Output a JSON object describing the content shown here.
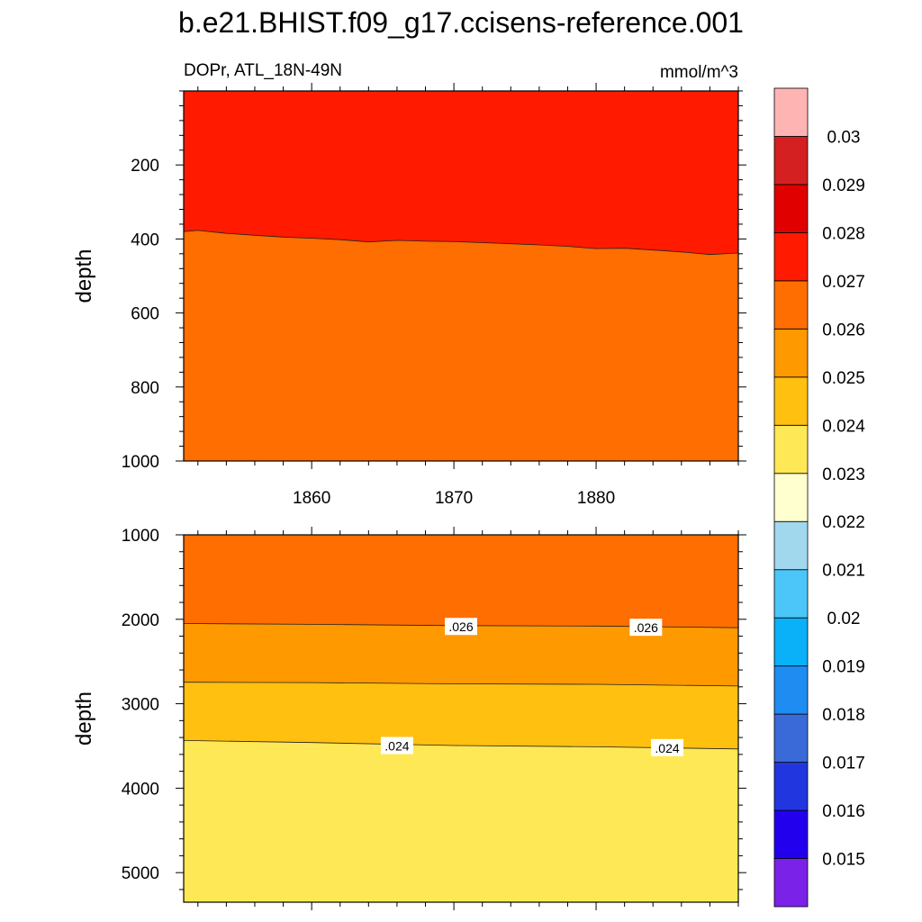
{
  "title": "b.e21.BHIST.f09_g17.ccisens-reference.001",
  "subtitle_left": "DOPr, ATL_18N-49N",
  "subtitle_right": "mmol/m^3",
  "chart_data": [
    {
      "type": "area",
      "panel": "top",
      "ylabel": "depth",
      "xlim": [
        1851,
        1890
      ],
      "ylim": [
        0,
        1000
      ],
      "y_inverted": true,
      "x_ticks": [
        1860,
        1870,
        1880
      ],
      "x_tick_labels": [
        "1860",
        "1870",
        "1880"
      ],
      "y_ticks": [
        200,
        400,
        600,
        800,
        1000
      ],
      "y_tick_labels": [
        "200",
        "400",
        "600",
        "800",
        "1000"
      ],
      "bands": [
        {
          "level_range": [
            0.027,
            0.028
          ],
          "color": "#ff1a00"
        },
        {
          "level_range": [
            0.026,
            0.027
          ],
          "color": "#ff6e00"
        }
      ],
      "contours": [
        {
          "level": 0.027,
          "x": [
            1851,
            1852,
            1854,
            1856,
            1858,
            1860,
            1862,
            1864,
            1866,
            1868,
            1870,
            1872,
            1874,
            1876,
            1878,
            1880,
            1882,
            1884,
            1886,
            1888,
            1890
          ],
          "y": [
            380,
            377,
            385,
            390,
            395,
            398,
            402,
            408,
            404,
            406,
            407,
            410,
            413,
            416,
            420,
            426,
            425,
            430,
            435,
            442,
            438
          ]
        }
      ],
      "contour_labels": []
    },
    {
      "type": "area",
      "panel": "bottom",
      "ylabel": "depth",
      "xlim": [
        1851,
        1890
      ],
      "ylim": [
        1000,
        5350
      ],
      "y_inverted": true,
      "x_ticks": [
        1860,
        1870,
        1880
      ],
      "x_tick_labels": [],
      "y_ticks": [
        1000,
        2000,
        3000,
        4000,
        5000
      ],
      "y_tick_labels": [
        "1000",
        "2000",
        "3000",
        "4000",
        "5000"
      ],
      "bands": [
        {
          "level_range": [
            0.026,
            0.027
          ],
          "color": "#ff6e00"
        },
        {
          "level_range": [
            0.025,
            0.026
          ],
          "color": "#ff9900"
        },
        {
          "level_range": [
            0.024,
            0.025
          ],
          "color": "#ffc010"
        },
        {
          "level_range": [
            0.023,
            0.024
          ],
          "color": "#ffe855"
        }
      ],
      "contours": [
        {
          "level": 0.026,
          "x": [
            1851,
            1860,
            1870,
            1880,
            1890
          ],
          "y": [
            2050,
            2060,
            2075,
            2080,
            2100
          ]
        },
        {
          "level": 0.025,
          "x": [
            1851,
            1860,
            1870,
            1880,
            1890
          ],
          "y": [
            2745,
            2750,
            2765,
            2770,
            2790
          ]
        },
        {
          "level": 0.024,
          "x": [
            1851,
            1860,
            1870,
            1880,
            1890
          ],
          "y": [
            3435,
            3460,
            3495,
            3510,
            3535
          ]
        }
      ],
      "contour_labels": [
        {
          "text": ".026",
          "x": 1870.5,
          "y": 2090
        },
        {
          "text": ".026",
          "x": 1883.5,
          "y": 2100
        },
        {
          "text": ".024",
          "x": 1866,
          "y": 3500
        },
        {
          "text": ".024",
          "x": 1885,
          "y": 3525
        }
      ]
    }
  ],
  "colorbar": {
    "labels": [
      "0.015",
      "0.016",
      "0.017",
      "0.018",
      "0.019",
      "0.02",
      "0.021",
      "0.022",
      "0.023",
      "0.024",
      "0.025",
      "0.026",
      "0.027",
      "0.028",
      "0.029",
      "0.03"
    ],
    "colors": [
      "#7b22e8",
      "#2200ee",
      "#2236e0",
      "#3a6ad8",
      "#1e8cf0",
      "#0ab0f8",
      "#4cc6f8",
      "#a2d8ee",
      "#ffffd0",
      "#ffe855",
      "#ffc010",
      "#ff9900",
      "#ff6e00",
      "#ff1a00",
      "#e00000",
      "#d42020",
      "#ffb4b4"
    ]
  }
}
